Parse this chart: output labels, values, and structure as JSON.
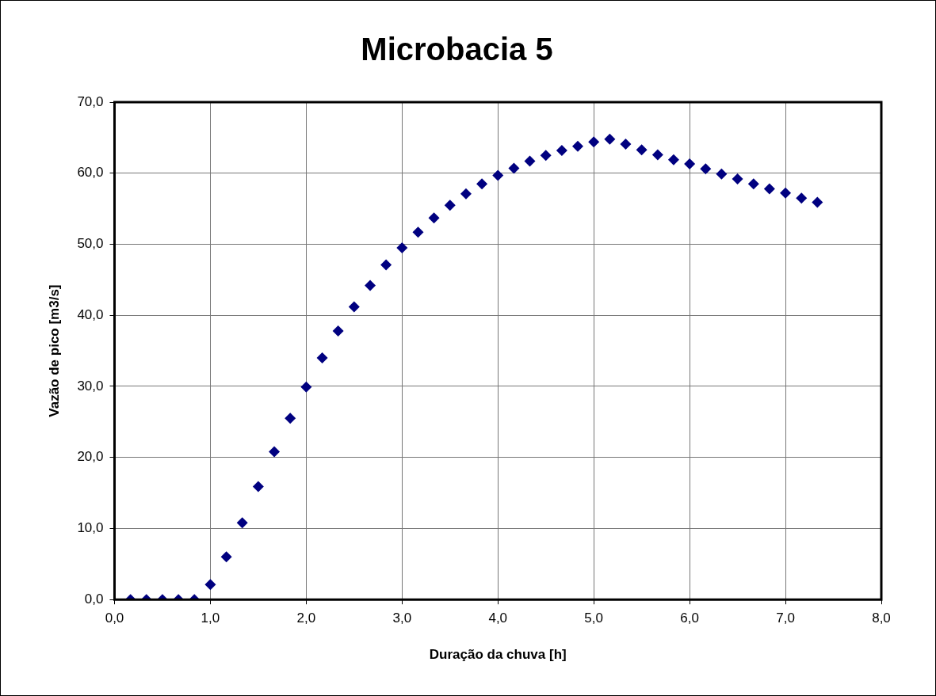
{
  "chart_data": {
    "type": "scatter",
    "title": "Microbacia 5",
    "xlabel": "Duração da chuva [h]",
    "ylabel": "Vazão de pico [m3/s]",
    "x": [
      0.167,
      0.333,
      0.5,
      0.667,
      0.833,
      1.0,
      1.167,
      1.333,
      1.5,
      1.667,
      1.833,
      2.0,
      2.167,
      2.333,
      2.5,
      2.667,
      2.833,
      3.0,
      3.167,
      3.333,
      3.5,
      3.667,
      3.833,
      4.0,
      4.167,
      4.333,
      4.5,
      4.667,
      4.833,
      5.0,
      5.167,
      5.333,
      5.5,
      5.667,
      5.833,
      6.0,
      6.167,
      6.333,
      6.5,
      6.667,
      6.833,
      7.0,
      7.167,
      7.333
    ],
    "series": [
      {
        "color": "#000080",
        "values": [
          0,
          0,
          0,
          0,
          0,
          2.1,
          6.0,
          10.8,
          15.9,
          20.8,
          25.5,
          29.9,
          34.0,
          37.8,
          41.2,
          44.2,
          47.1,
          49.5,
          51.7,
          53.7,
          55.5,
          57.1,
          58.5,
          59.7,
          60.7,
          61.7,
          62.5,
          63.2,
          63.8,
          64.4,
          64.8,
          64.1,
          63.3,
          62.6,
          61.9,
          61.3,
          60.6,
          59.9,
          59.2,
          58.5,
          57.8,
          57.2,
          56.5,
          55.9
        ]
      }
    ],
    "xlim": [
      0,
      8
    ],
    "ylim": [
      0,
      70
    ],
    "xticks": [
      {
        "value": 0,
        "label": "0,0"
      },
      {
        "value": 1,
        "label": "1,0"
      },
      {
        "value": 2,
        "label": "2,0"
      },
      {
        "value": 3,
        "label": "3,0"
      },
      {
        "value": 4,
        "label": "4,0"
      },
      {
        "value": 5,
        "label": "5,0"
      },
      {
        "value": 6,
        "label": "6,0"
      },
      {
        "value": 7,
        "label": "7,0"
      },
      {
        "value": 8,
        "label": "8,0"
      }
    ],
    "yticks": [
      {
        "value": 0,
        "label": "0,0"
      },
      {
        "value": 10,
        "label": "10,0"
      },
      {
        "value": 20,
        "label": "20,0"
      },
      {
        "value": 30,
        "label": "30,0"
      },
      {
        "value": 40,
        "label": "40,0"
      },
      {
        "value": 50,
        "label": "50,0"
      },
      {
        "value": 60,
        "label": "60,0"
      },
      {
        "value": 70,
        "label": "70,0"
      }
    ],
    "grid": true,
    "marker": "diamond",
    "legend": false
  }
}
